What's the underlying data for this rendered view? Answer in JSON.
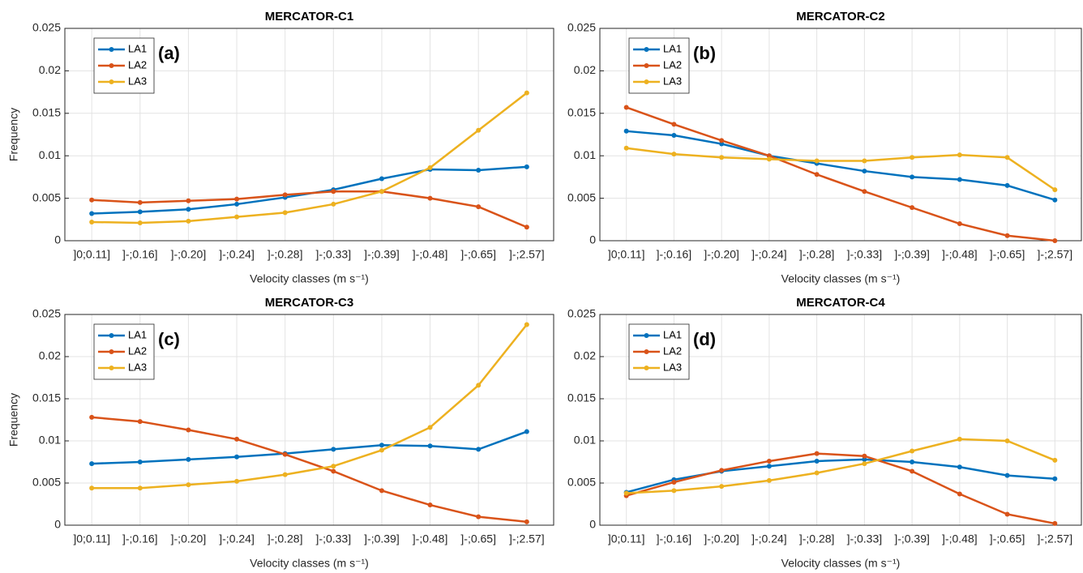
{
  "chart_data": [
    {
      "type": "line",
      "title": "MERCATOR-C1",
      "annotation": "(a)",
      "ylabel": "Frequency",
      "xlabel": "Velocity classes (m s⁻¹)",
      "categories": [
        "]0;0.11]",
        "]-;0.16]",
        "]-;0.20]",
        "]-;0.24]",
        "]-;0.28]",
        "]-;0.33]",
        "]-;0.39]",
        "]-;0.48]",
        "]-;0.65]",
        "]-;2.57]"
      ],
      "ylim": [
        0,
        0.025
      ],
      "yticks": [
        0,
        0.005,
        0.01,
        0.015,
        0.02,
        0.025
      ],
      "grid": true,
      "series": [
        {
          "name": "LA1",
          "color": "#0072BD",
          "values": [
            0.0032,
            0.0034,
            0.0037,
            0.0043,
            0.0051,
            0.006,
            0.0073,
            0.0084,
            0.0083,
            0.0087
          ]
        },
        {
          "name": "LA2",
          "color": "#D95319",
          "values": [
            0.0048,
            0.0045,
            0.0047,
            0.0049,
            0.0054,
            0.0058,
            0.0058,
            0.005,
            0.004,
            0.0016
          ]
        },
        {
          "name": "LA3",
          "color": "#EDB120",
          "values": [
            0.0022,
            0.0021,
            0.0023,
            0.0028,
            0.0033,
            0.0043,
            0.0058,
            0.0086,
            0.013,
            0.0174
          ]
        }
      ]
    },
    {
      "type": "line",
      "title": "MERCATOR-C2",
      "annotation": "(b)",
      "xlabel": "Velocity classes (m s⁻¹)",
      "categories": [
        "]0;0.11]",
        "]-;0.16]",
        "]-;0.20]",
        "]-;0.24]",
        "]-;0.28]",
        "]-;0.33]",
        "]-;0.39]",
        "]-;0.48]",
        "]-;0.65]",
        "]-;2.57]"
      ],
      "ylim": [
        0,
        0.025
      ],
      "yticks": [
        0,
        0.005,
        0.01,
        0.015,
        0.02,
        0.025
      ],
      "grid": true,
      "series": [
        {
          "name": "LA1",
          "color": "#0072BD",
          "values": [
            0.0129,
            0.0124,
            0.0114,
            0.01,
            0.0091,
            0.0082,
            0.0075,
            0.0072,
            0.0065,
            0.0048
          ]
        },
        {
          "name": "LA2",
          "color": "#D95319",
          "values": [
            0.0157,
            0.0137,
            0.0118,
            0.01,
            0.0078,
            0.0058,
            0.0039,
            0.002,
            0.0006,
            0.0
          ]
        },
        {
          "name": "LA3",
          "color": "#EDB120",
          "values": [
            0.0109,
            0.0102,
            0.0098,
            0.0096,
            0.0094,
            0.0094,
            0.0098,
            0.0101,
            0.0098,
            0.006
          ]
        }
      ]
    },
    {
      "type": "line",
      "title": "MERCATOR-C3",
      "annotation": "(c)",
      "ylabel": "Frequency",
      "xlabel": "Velocity classes (m s⁻¹)",
      "categories": [
        "]0;0.11]",
        "]-;0.16]",
        "]-;0.20]",
        "]-;0.24]",
        "]-;0.28]",
        "]-;0.33]",
        "]-;0.39]",
        "]-;0.48]",
        "]-;0.65]",
        "]-;2.57]"
      ],
      "ylim": [
        0,
        0.025
      ],
      "yticks": [
        0,
        0.005,
        0.01,
        0.015,
        0.02,
        0.025
      ],
      "grid": true,
      "series": [
        {
          "name": "LA1",
          "color": "#0072BD",
          "values": [
            0.0073,
            0.0075,
            0.0078,
            0.0081,
            0.0085,
            0.009,
            0.0095,
            0.0094,
            0.009,
            0.0111
          ]
        },
        {
          "name": "LA2",
          "color": "#D95319",
          "values": [
            0.0128,
            0.0123,
            0.0113,
            0.0102,
            0.0084,
            0.0064,
            0.0041,
            0.0024,
            0.001,
            0.0004
          ]
        },
        {
          "name": "LA3",
          "color": "#EDB120",
          "values": [
            0.0044,
            0.0044,
            0.0048,
            0.0052,
            0.006,
            0.007,
            0.0089,
            0.0116,
            0.0166,
            0.0238
          ]
        }
      ]
    },
    {
      "type": "line",
      "title": "MERCATOR-C4",
      "annotation": "(d)",
      "xlabel": "Velocity classes (m s⁻¹)",
      "categories": [
        "]0;0.11]",
        "]-;0.16]",
        "]-;0.20]",
        "]-;0.24]",
        "]-;0.28]",
        "]-;0.33]",
        "]-;0.39]",
        "]-;0.48]",
        "]-;0.65]",
        "]-;2.57]"
      ],
      "ylim": [
        0,
        0.025
      ],
      "yticks": [
        0,
        0.005,
        0.01,
        0.015,
        0.02,
        0.025
      ],
      "grid": true,
      "series": [
        {
          "name": "LA1",
          "color": "#0072BD",
          "values": [
            0.0039,
            0.0054,
            0.0064,
            0.007,
            0.0076,
            0.0078,
            0.0075,
            0.0069,
            0.0059,
            0.0055
          ]
        },
        {
          "name": "LA2",
          "color": "#D95319",
          "values": [
            0.0035,
            0.0051,
            0.0065,
            0.0076,
            0.0085,
            0.0082,
            0.0064,
            0.0037,
            0.0013,
            0.0002
          ]
        },
        {
          "name": "LA3",
          "color": "#EDB120",
          "values": [
            0.0038,
            0.0041,
            0.0046,
            0.0053,
            0.0062,
            0.0073,
            0.0088,
            0.0102,
            0.01,
            0.0077
          ]
        }
      ]
    }
  ]
}
